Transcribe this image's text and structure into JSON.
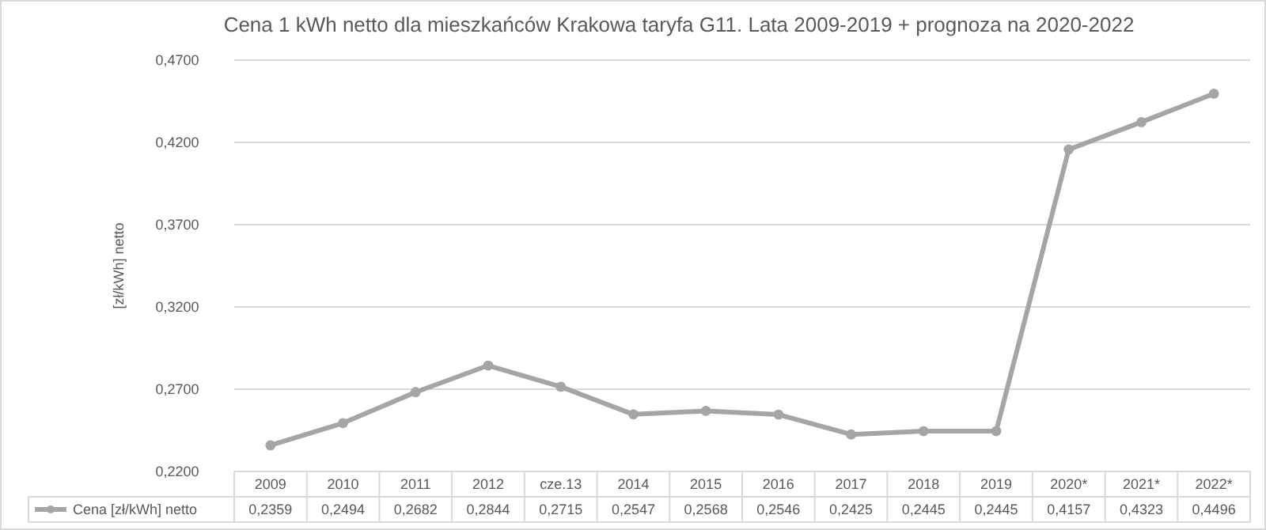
{
  "chart_data": {
    "type": "line",
    "title": "Cena 1 kWh netto dla mieszkańców Krakowa taryfa G11. Lata 2009-2019 + prognoza na 2020-2022",
    "ylabel": "[zł/kWh] netto",
    "categories": [
      "2009",
      "2010",
      "2011",
      "2012",
      "cze.13",
      "2014",
      "2015",
      "2016",
      "2017",
      "2018",
      "2019",
      "2020*",
      "2021*",
      "2022*"
    ],
    "series": [
      {
        "name": "Cena [zł/kWh] netto",
        "color": "#a5a5a5",
        "values": [
          0.2359,
          0.2494,
          0.2682,
          0.2844,
          0.2715,
          0.2547,
          0.2568,
          0.2546,
          0.2425,
          0.2445,
          0.2445,
          0.4157,
          0.4323,
          0.4496
        ],
        "value_labels": [
          "0,2359",
          "0,2494",
          "0,2682",
          "0,2844",
          "0,2715",
          "0,2547",
          "0,2568",
          "0,2546",
          "0,2425",
          "0,2445",
          "0,2445",
          "0,4157",
          "0,4323",
          "0,4496"
        ]
      }
    ],
    "ylim": [
      0.22,
      0.47
    ],
    "yticks": [
      {
        "value": 0.22,
        "label": "0,2200"
      },
      {
        "value": 0.27,
        "label": "0,2700"
      },
      {
        "value": 0.32,
        "label": "0,3200"
      },
      {
        "value": 0.37,
        "label": "0,3700"
      },
      {
        "value": 0.42,
        "label": "0,4200"
      },
      {
        "value": 0.47,
        "label": "0,4700"
      }
    ],
    "grid": "y",
    "marker": "circle",
    "line_style": "solid",
    "legend": "bottom"
  }
}
